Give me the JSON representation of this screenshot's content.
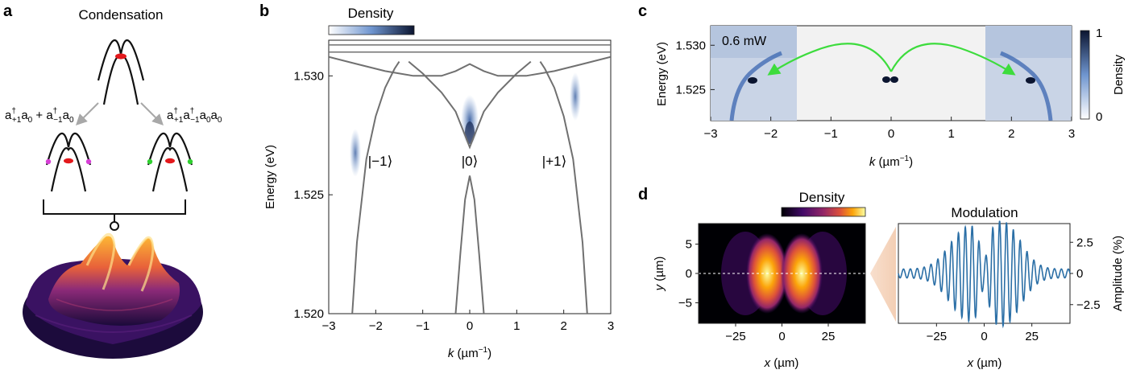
{
  "panel_labels": {
    "a": "a",
    "b": "b",
    "c": "c",
    "d": "d"
  },
  "panel_a": {
    "title": "Condensation",
    "left_process": "a†+1a0 + a†−1a0",
    "right_process": "a†+1a†−1a0a0",
    "colors": {
      "condensate": "#e3191c",
      "left_sidebands": "#d63fd6",
      "right_sidebands": "#2fcf2f"
    }
  },
  "panel_b": {
    "colorbar_label": "Density",
    "state_labels": [
      "|−1⟩",
      "|0⟩",
      "|+1⟩"
    ],
    "x_ticks": [
      "−3",
      "−2",
      "−1",
      "0",
      "1",
      "2",
      "3"
    ],
    "y_ticks": [
      "1.520",
      "1.525",
      "1.530"
    ]
  },
  "panel_c": {
    "power_label": "0.6 mW",
    "colorbar_label": "Density",
    "colorbar_ticks": [
      "1",
      "0"
    ],
    "x_ticks": [
      "−3",
      "−2",
      "−1",
      "0",
      "1",
      "2",
      "3"
    ],
    "y_ticks": [
      "1.525",
      "1.530"
    ],
    "arrow_color": "#3ddc3d"
  },
  "panel_d": {
    "colorbar_label": "Density",
    "left_y_ticks": [
      "5",
      "0",
      "−5"
    ],
    "x_ticks": [
      "−25",
      "0",
      "25"
    ],
    "right_title": "Modulation",
    "right_ylabel": "Amplitude (%)",
    "right_y_ticks": [
      "2.5",
      "0",
      "−2.5"
    ]
  },
  "chart_data": [
    {
      "type": "line",
      "panel": "b",
      "xlabel": "k (µm⁻¹)",
      "ylabel": "Energy (eV)",
      "xlim": [
        -3,
        3
      ],
      "ylim": [
        1.52,
        1.5315
      ],
      "series": [
        {
          "x": [
            -3,
            -2.4,
            -1.8,
            -1.2,
            -0.6,
            -0.3,
            0,
            0.3,
            0.6,
            1.2,
            1.8,
            2.4,
            3
          ],
          "values": [
            1.5308,
            1.5305,
            1.5302,
            1.53,
            1.53,
            1.5302,
            1.5305,
            1.5302,
            1.53,
            1.53,
            1.5302,
            1.5305,
            1.5308
          ]
        },
        {
          "x": [
            -2.5,
            -2.4,
            -2.2,
            -2.0,
            -1.8,
            -1.6,
            -1.5
          ],
          "values": [
            1.52,
            1.523,
            1.5265,
            1.5283,
            1.5295,
            1.5303,
            1.5306
          ]
        },
        {
          "x": [
            -1.3,
            -1.0,
            -0.6,
            -0.3,
            -0.12,
            0,
            0.12,
            0.3,
            0.6,
            1.0,
            1.3
          ],
          "values": [
            1.5306,
            1.5301,
            1.5293,
            1.5285,
            1.5276,
            1.527,
            1.5276,
            1.5285,
            1.5293,
            1.5301,
            1.5306
          ]
        },
        {
          "x": [
            1.5,
            1.6,
            1.8,
            2.0,
            2.2,
            2.4,
            2.5
          ],
          "values": [
            1.5306,
            1.5303,
            1.5295,
            1.5283,
            1.5265,
            1.523,
            1.52
          ]
        },
        {
          "x": [
            -0.3,
            -0.2,
            -0.1,
            0,
            0.1,
            0.2,
            0.3
          ],
          "values": [
            1.52,
            1.5225,
            1.5248,
            1.5258,
            1.5248,
            1.5225,
            1.52
          ]
        }
      ]
    },
    {
      "type": "heatmap",
      "panel": "c",
      "xlabel": "k (µm⁻¹)",
      "ylabel": "Energy (eV)",
      "xlim": [
        -3,
        3
      ],
      "ylim": [
        1.5215,
        1.5322
      ],
      "colorbar": [
        0,
        1
      ],
      "peaks": [
        {
          "k": -2.3,
          "E": 1.5266
        },
        {
          "k": 0,
          "E": 1.5268
        },
        {
          "k": 2.3,
          "E": 1.5266
        }
      ]
    },
    {
      "type": "heatmap",
      "panel": "d-left",
      "xlabel": "x (µm)",
      "ylabel": "y (µm)",
      "xlim": [
        -45,
        45
      ],
      "ylim": [
        -8.5,
        8.5
      ]
    },
    {
      "type": "line",
      "panel": "d-right",
      "title": "Modulation",
      "xlabel": "x (µm)",
      "ylabel": "Amplitude (%)",
      "xlim": [
        -45,
        45
      ],
      "ylim": [
        -4,
        4
      ]
    }
  ]
}
